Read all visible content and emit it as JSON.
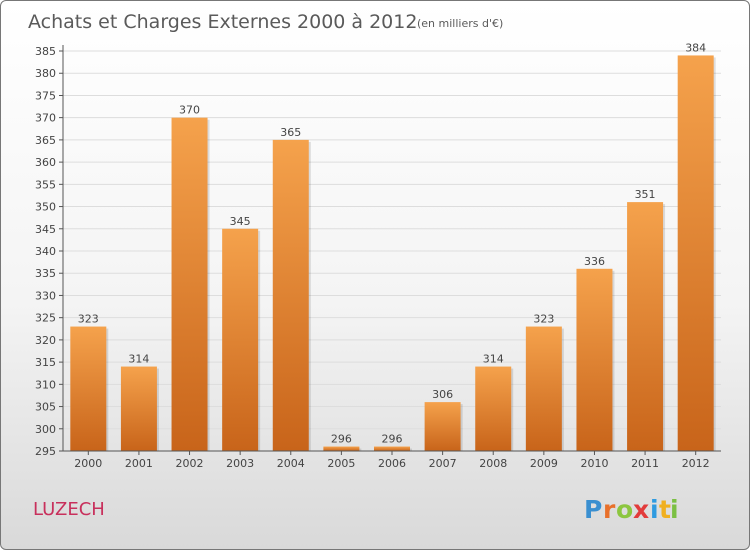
{
  "header": {
    "title": "Achats et Charges Externes 2000 à 2012",
    "unit": "(en milliers d'€)"
  },
  "footer": {
    "commune": "LUZECH",
    "brand_letters": [
      "P",
      "r",
      "o",
      "x",
      "i",
      "t",
      "i"
    ],
    "brand_colors": [
      "#3a8fd0",
      "#e8702a",
      "#8cc63f",
      "#e23b3b",
      "#2f9be0",
      "#f0b020",
      "#7bc043"
    ]
  },
  "colors": {
    "bar_top": "#f5a24c",
    "bar_bottom": "#c8641a",
    "grid": "#dddddd",
    "axis": "#555555"
  },
  "chart_data": {
    "type": "bar",
    "title": "Achats et Charges Externes 2000 à 2012",
    "categories": [
      "2000",
      "2001",
      "2002",
      "2003",
      "2004",
      "2005",
      "2006",
      "2007",
      "2008",
      "2009",
      "2010",
      "2011",
      "2012"
    ],
    "values": [
      323,
      314,
      370,
      345,
      365,
      296,
      296,
      306,
      314,
      323,
      336,
      351,
      384
    ],
    "ylim": [
      295,
      385
    ],
    "ytick_step": 5,
    "grid": true,
    "data_labels": true
  }
}
